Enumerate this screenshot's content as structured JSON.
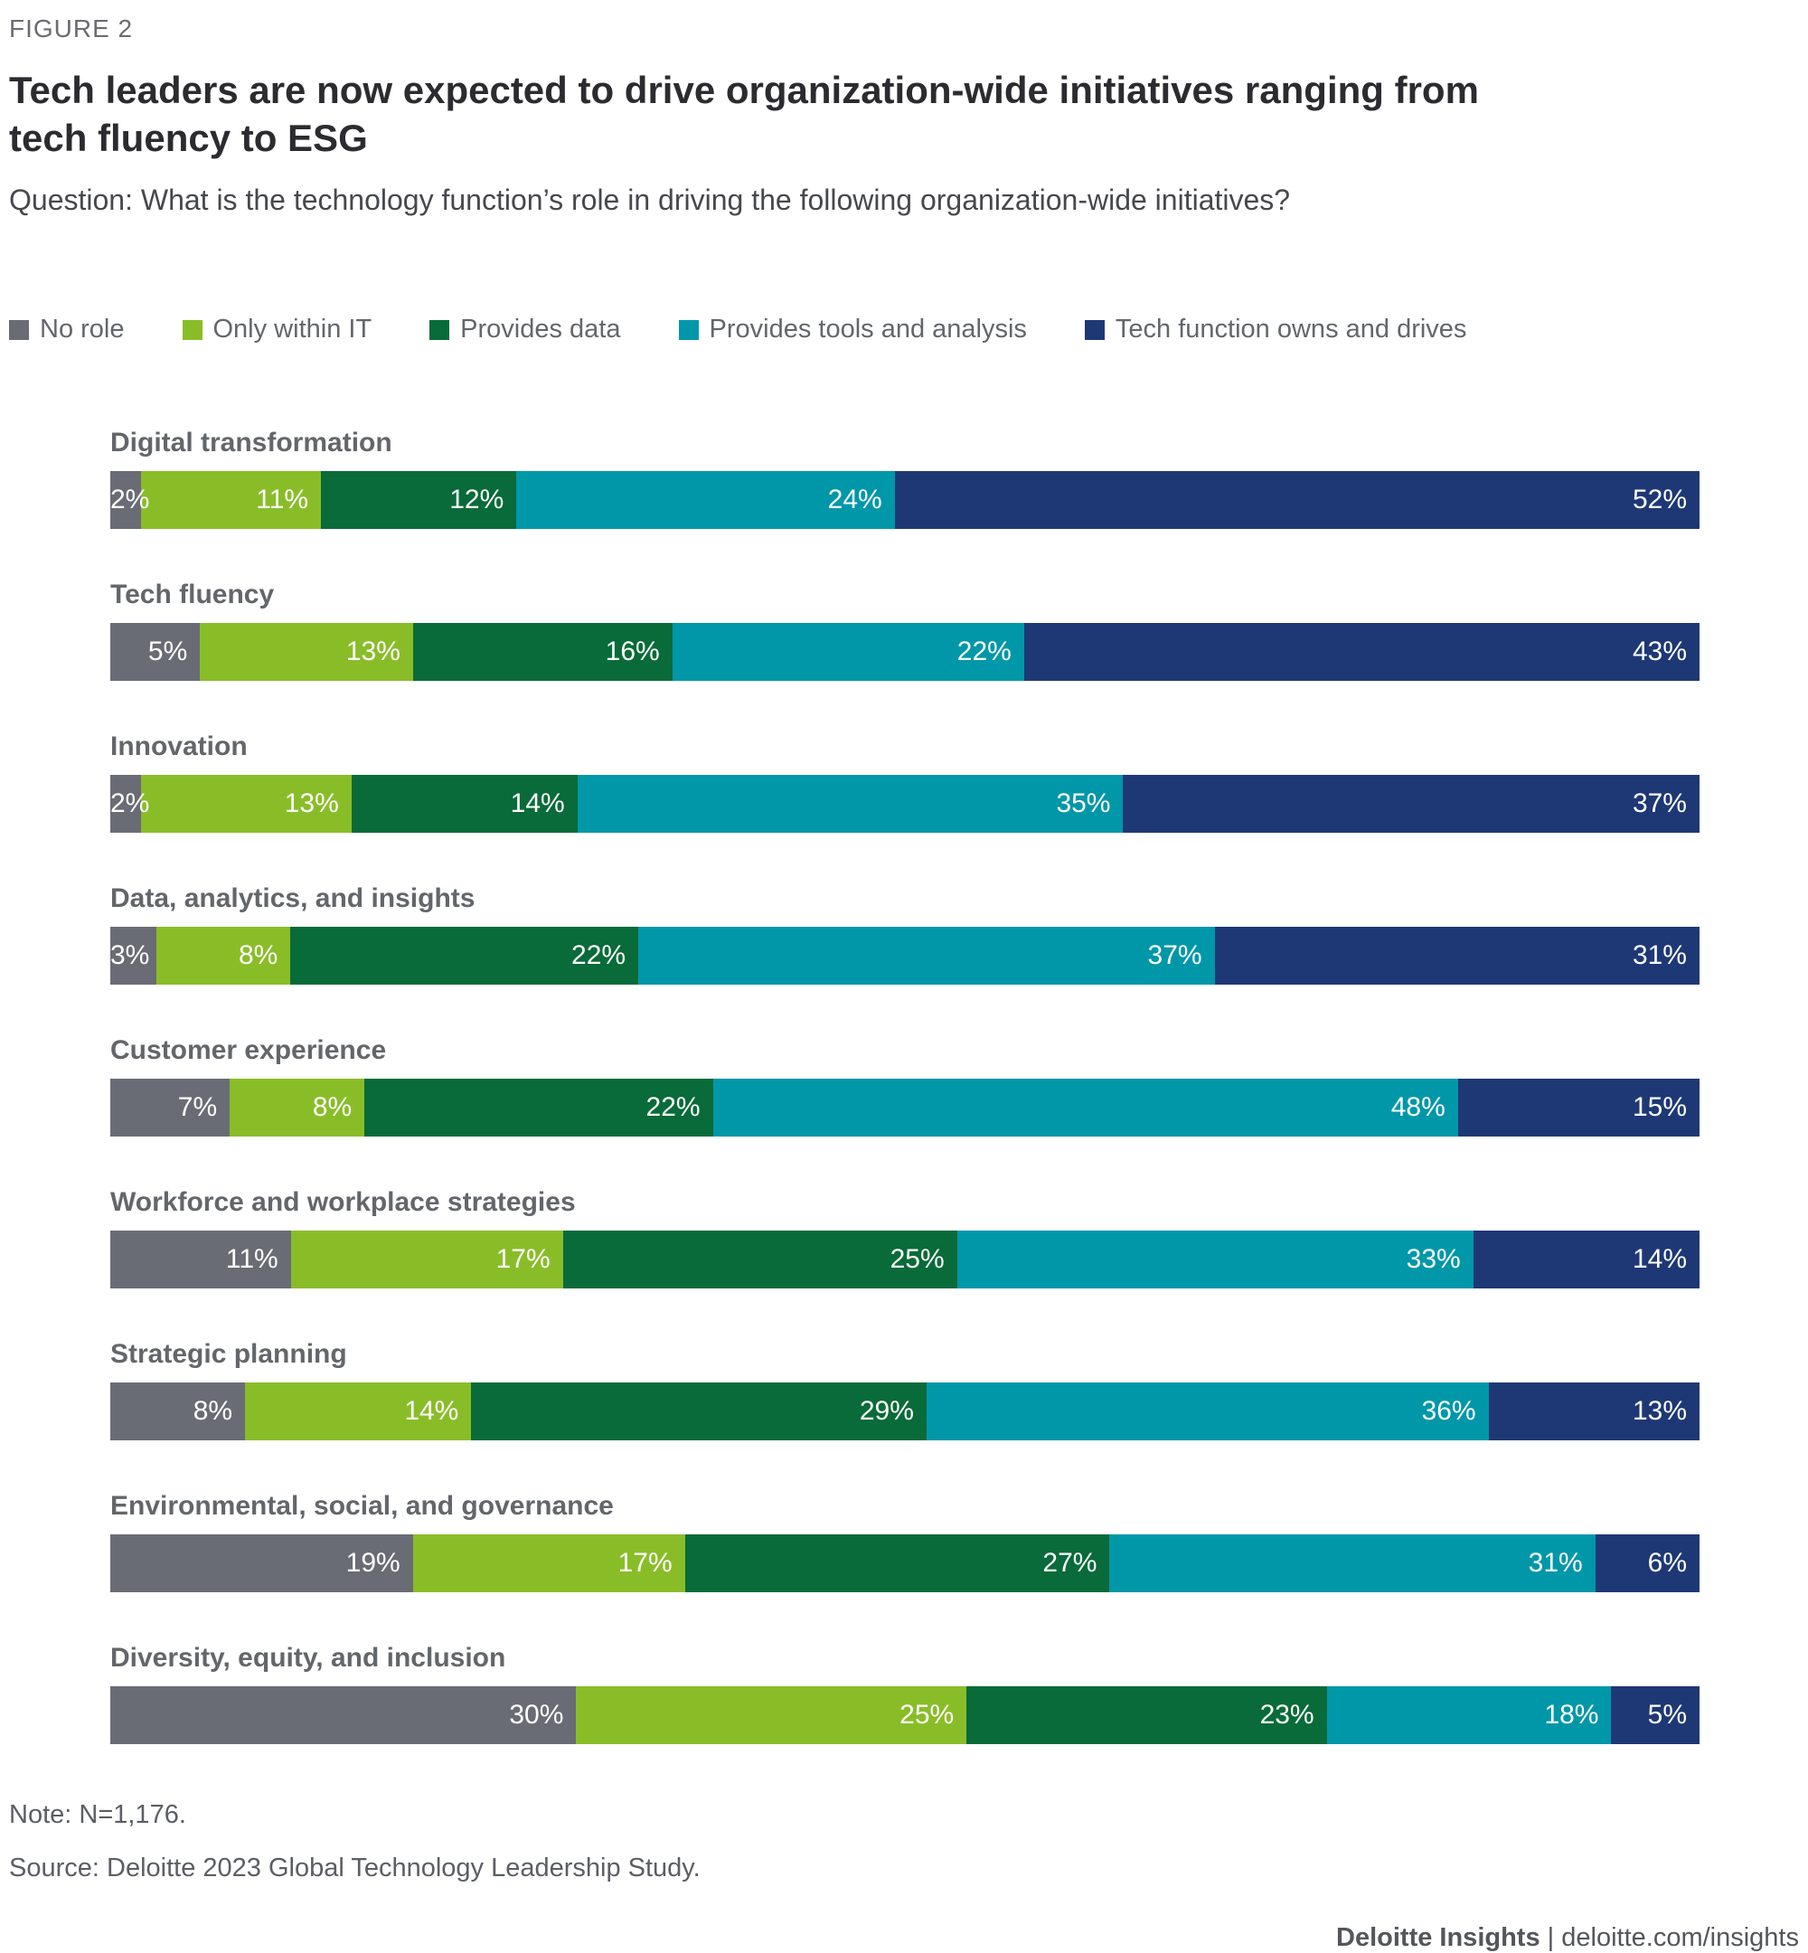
{
  "figure_label": "FIGURE 2",
  "title": "Tech leaders are now expected to drive organization-wide initiatives ranging from tech fluency to ESG",
  "subtitle": "Question: What is the technology function’s role in driving the following organization-wide initiatives?",
  "chart_data": {
    "type": "bar",
    "variant": "horizontal-stacked",
    "value_suffix": "%",
    "xlim": [
      0,
      100
    ],
    "legend_position": "top",
    "grid": false,
    "value_label_color": "#ffffff",
    "categories": [
      "Digital transformation",
      "Tech fluency",
      "Innovation",
      "Data, analytics, and insights",
      "Customer experience",
      "Workforce and workplace strategies",
      "Strategic planning",
      "Environmental, social, and governance",
      "Diversity, equity, and inclusion"
    ],
    "series": [
      {
        "name": "No role",
        "color": "#696c74",
        "values": [
          2,
          5,
          2,
          3,
          7,
          11,
          8,
          19,
          30
        ]
      },
      {
        "name": "Only within IT",
        "color": "#89bd28",
        "values": [
          11,
          13,
          13,
          8,
          8,
          17,
          14,
          17,
          25
        ]
      },
      {
        "name": "Provides data",
        "color": "#086b39",
        "values": [
          12,
          16,
          14,
          22,
          22,
          25,
          29,
          27,
          23
        ]
      },
      {
        "name": "Provides tools and analysis",
        "color": "#0097a9",
        "values": [
          24,
          22,
          35,
          37,
          48,
          33,
          36,
          31,
          18
        ]
      },
      {
        "name": "Tech function owns and drives",
        "color": "#1e3876",
        "values": [
          52,
          43,
          37,
          31,
          15,
          14,
          13,
          6,
          5
        ]
      }
    ]
  },
  "note": "Note: N=1,176.",
  "source": "Source: Deloitte 2023 Global Technology Leadership Study.",
  "footer": {
    "brand": "Deloitte Insights",
    "separator": " | ",
    "link": "deloitte.com/insights"
  }
}
